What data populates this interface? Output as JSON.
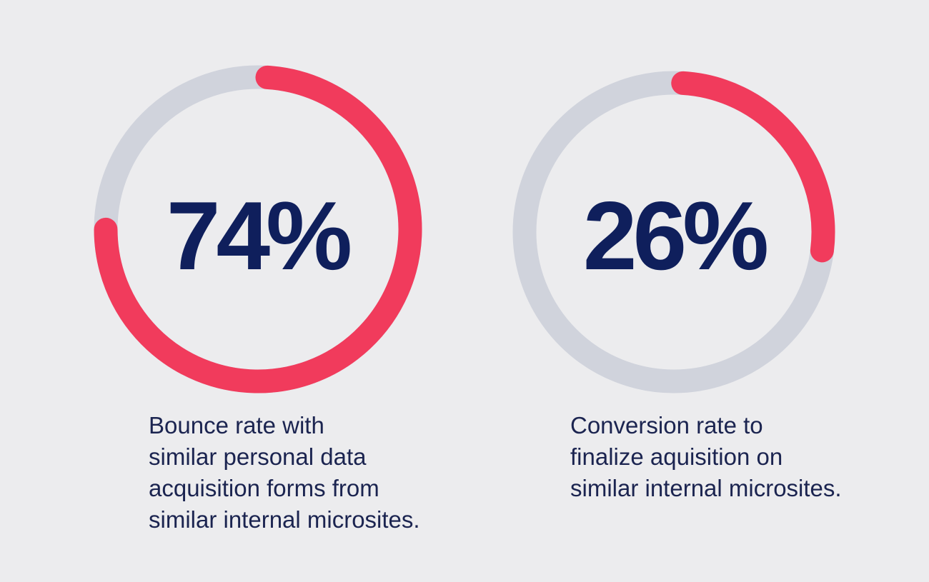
{
  "colors": {
    "background": "#ececee",
    "track": "#d0d3dc",
    "progress": "#f13b5c",
    "value_text": "#0f1f5c",
    "caption_text": "#1b2450"
  },
  "chart_data": [
    {
      "type": "pie",
      "subtype": "donut-progress",
      "value": 74,
      "max": 100,
      "label": "74%",
      "caption_lines": [
        "Bounce rate with",
        "similar personal data",
        "acquisition forms from",
        "similar internal microsites."
      ]
    },
    {
      "type": "pie",
      "subtype": "donut-progress",
      "value": 26,
      "max": 100,
      "label": "26%",
      "caption_lines": [
        "Conversion rate to",
        "finalize aquisition on",
        "similar internal microsites."
      ]
    }
  ]
}
